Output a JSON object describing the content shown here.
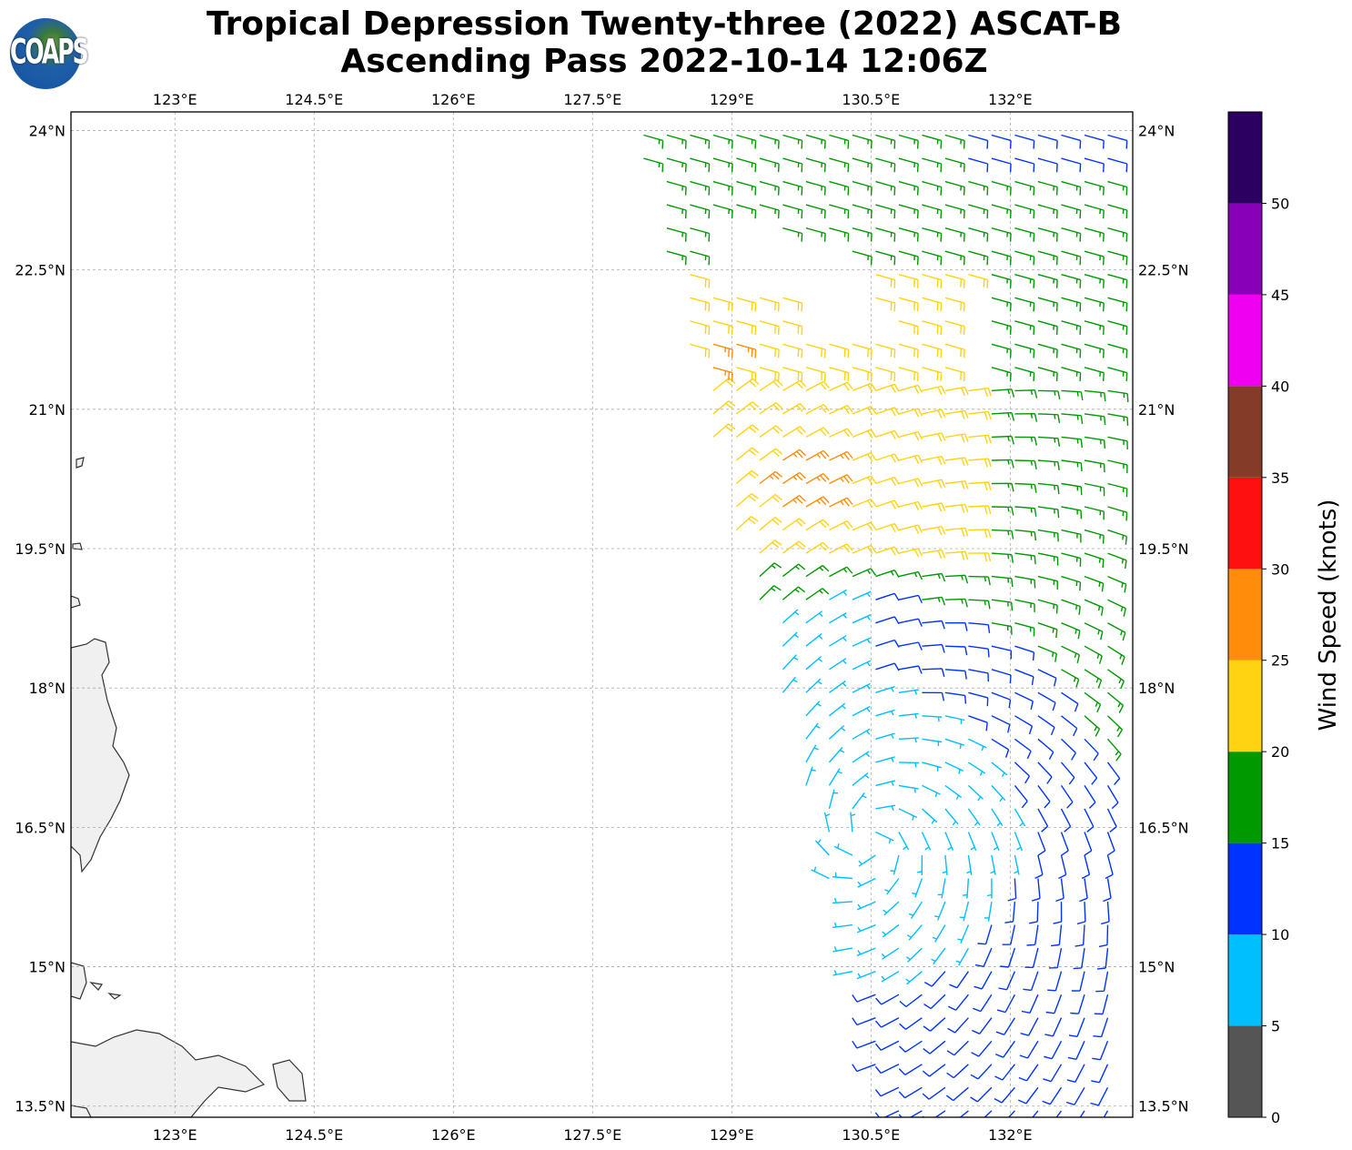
{
  "header": {
    "title_line1": "Tropical Depression Twenty-three (2022) ASCAT-B",
    "title_line2": "Ascending Pass 2022-10-14 12:06Z",
    "logo_text": "COAPS"
  },
  "chart_data": {
    "type": "wind-barb-map",
    "lon_range": [
      121.88,
      133.32
    ],
    "lat_range": [
      13.38,
      24.2
    ],
    "lon_ticks": [
      123,
      124.5,
      126,
      127.5,
      129,
      130.5,
      132
    ],
    "lon_tick_labels": [
      "123°E",
      "124.5°E",
      "126°E",
      "127.5°E",
      "129°E",
      "130.5°E",
      "132°E"
    ],
    "lat_ticks": [
      24,
      22.5,
      21,
      19.5,
      18,
      16.5,
      15,
      13.5
    ],
    "lat_tick_labels": [
      "24°N",
      "22.5°N",
      "21°N",
      "19.5°N",
      "18°N",
      "16.5°N",
      "15°N",
      "13.5°N"
    ],
    "grid": true,
    "circulation_center": {
      "lon": 130.5,
      "lat": 16.4
    },
    "barb_spacing_deg": 0.25,
    "colorbar": {
      "label": "Wind Speed (knots)",
      "bounds": [
        0,
        5,
        10,
        15,
        20,
        25,
        30,
        35,
        40,
        45,
        50,
        55
      ],
      "tick_values": [
        0,
        5,
        10,
        15,
        20,
        25,
        30,
        35,
        40,
        45,
        50
      ],
      "tick_labels": [
        "0",
        "5",
        "10",
        "15",
        "20",
        "25",
        "30",
        "35",
        "40",
        "45",
        "50"
      ],
      "colors": [
        "#555555",
        "#00bfff",
        "#0033ff",
        "#009900",
        "#ffd311",
        "#ff8c0a",
        "#ff1010",
        "#843c28",
        "#f000f0",
        "#8800b8",
        "#2b0060"
      ]
    }
  }
}
